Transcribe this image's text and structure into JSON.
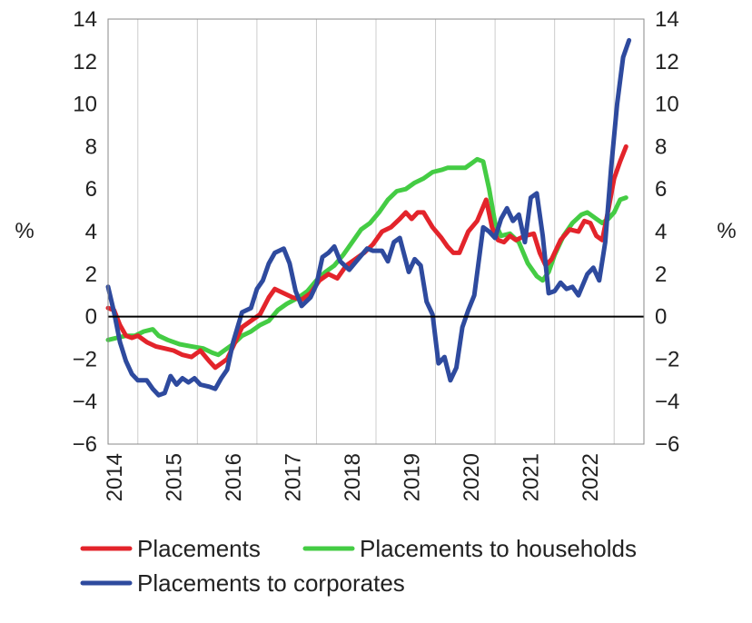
{
  "chart_data": {
    "type": "line",
    "yunit_left": "%",
    "yunit_right": "%",
    "ylim": [
      -6,
      14
    ],
    "yticks": [
      -6,
      -4,
      -2,
      0,
      2,
      4,
      6,
      8,
      10,
      12,
      14
    ],
    "xlim": [
      2013.5,
      2022.5
    ],
    "year_ticks": [
      2014,
      2015,
      2016,
      2017,
      2018,
      2019,
      2020,
      2021,
      2022
    ],
    "gridlines": [
      2014,
      2015,
      2016,
      2017,
      2018,
      2019,
      2020,
      2021,
      2022
    ],
    "grid": true,
    "legend_position": "bottom",
    "series": [
      {
        "name": "Placements",
        "color": "#e3242b",
        "points": [
          [
            2013.5,
            0.4
          ],
          [
            2013.6,
            0.3
          ],
          [
            2013.7,
            -0.4
          ],
          [
            2013.8,
            -0.9
          ],
          [
            2013.9,
            -1.0
          ],
          [
            2014.0,
            -0.9
          ],
          [
            2014.15,
            -1.2
          ],
          [
            2014.3,
            -1.4
          ],
          [
            2014.45,
            -1.5
          ],
          [
            2014.6,
            -1.6
          ],
          [
            2014.75,
            -1.8
          ],
          [
            2014.9,
            -1.9
          ],
          [
            2015.05,
            -1.6
          ],
          [
            2015.2,
            -2.1
          ],
          [
            2015.3,
            -2.4
          ],
          [
            2015.4,
            -2.2
          ],
          [
            2015.5,
            -2.0
          ],
          [
            2015.6,
            -1.4
          ],
          [
            2015.75,
            -0.5
          ],
          [
            2015.9,
            -0.2
          ],
          [
            2016.05,
            0.1
          ],
          [
            2016.2,
            0.9
          ],
          [
            2016.3,
            1.3
          ],
          [
            2016.45,
            1.1
          ],
          [
            2016.6,
            0.9
          ],
          [
            2016.75,
            0.8
          ],
          [
            2016.9,
            1.1
          ],
          [
            2017.05,
            1.7
          ],
          [
            2017.2,
            2.0
          ],
          [
            2017.35,
            1.8
          ],
          [
            2017.5,
            2.4
          ],
          [
            2017.65,
            2.7
          ],
          [
            2017.8,
            3.0
          ],
          [
            2017.95,
            3.4
          ],
          [
            2018.1,
            4.0
          ],
          [
            2018.25,
            4.2
          ],
          [
            2018.4,
            4.6
          ],
          [
            2018.5,
            4.9
          ],
          [
            2018.6,
            4.6
          ],
          [
            2018.7,
            4.9
          ],
          [
            2018.8,
            4.9
          ],
          [
            2018.95,
            4.2
          ],
          [
            2019.1,
            3.7
          ],
          [
            2019.2,
            3.3
          ],
          [
            2019.3,
            3.0
          ],
          [
            2019.4,
            3.0
          ],
          [
            2019.55,
            4.0
          ],
          [
            2019.7,
            4.5
          ],
          [
            2019.85,
            5.5
          ],
          [
            2019.95,
            4.2
          ],
          [
            2020.05,
            3.6
          ],
          [
            2020.15,
            3.5
          ],
          [
            2020.25,
            3.8
          ],
          [
            2020.35,
            3.6
          ],
          [
            2020.5,
            3.8
          ],
          [
            2020.65,
            3.9
          ],
          [
            2020.75,
            3.0
          ],
          [
            2020.85,
            2.4
          ],
          [
            2020.95,
            2.7
          ],
          [
            2021.1,
            3.6
          ],
          [
            2021.25,
            4.1
          ],
          [
            2021.4,
            4.0
          ],
          [
            2021.5,
            4.5
          ],
          [
            2021.6,
            4.4
          ],
          [
            2021.7,
            3.8
          ],
          [
            2021.8,
            3.6
          ],
          [
            2021.9,
            5.0
          ],
          [
            2022.0,
            6.5
          ],
          [
            2022.1,
            7.3
          ],
          [
            2022.2,
            8.0
          ]
        ]
      },
      {
        "name": "Placements to households",
        "color": "#44cc44",
        "points": [
          [
            2013.5,
            -1.1
          ],
          [
            2013.65,
            -1.0
          ],
          [
            2013.8,
            -0.9
          ],
          [
            2013.95,
            -0.9
          ],
          [
            2014.1,
            -0.7
          ],
          [
            2014.25,
            -0.6
          ],
          [
            2014.35,
            -0.9
          ],
          [
            2014.5,
            -1.1
          ],
          [
            2014.7,
            -1.3
          ],
          [
            2014.9,
            -1.4
          ],
          [
            2015.1,
            -1.5
          ],
          [
            2015.25,
            -1.7
          ],
          [
            2015.35,
            -1.8
          ],
          [
            2015.45,
            -1.6
          ],
          [
            2015.6,
            -1.3
          ],
          [
            2015.75,
            -0.9
          ],
          [
            2015.9,
            -0.7
          ],
          [
            2016.05,
            -0.4
          ],
          [
            2016.2,
            -0.2
          ],
          [
            2016.35,
            0.3
          ],
          [
            2016.5,
            0.6
          ],
          [
            2016.7,
            0.9
          ],
          [
            2016.85,
            1.2
          ],
          [
            2017.0,
            1.7
          ],
          [
            2017.15,
            2.1
          ],
          [
            2017.3,
            2.4
          ],
          [
            2017.45,
            2.9
          ],
          [
            2017.6,
            3.5
          ],
          [
            2017.75,
            4.1
          ],
          [
            2017.9,
            4.4
          ],
          [
            2018.05,
            4.9
          ],
          [
            2018.2,
            5.5
          ],
          [
            2018.35,
            5.9
          ],
          [
            2018.5,
            6.0
          ],
          [
            2018.65,
            6.3
          ],
          [
            2018.8,
            6.5
          ],
          [
            2018.95,
            6.8
          ],
          [
            2019.1,
            6.9
          ],
          [
            2019.2,
            7.0
          ],
          [
            2019.35,
            7.0
          ],
          [
            2019.5,
            7.0
          ],
          [
            2019.6,
            7.2
          ],
          [
            2019.7,
            7.4
          ],
          [
            2019.8,
            7.3
          ],
          [
            2019.9,
            6.0
          ],
          [
            2020.0,
            4.4
          ],
          [
            2020.1,
            3.8
          ],
          [
            2020.25,
            3.9
          ],
          [
            2020.4,
            3.5
          ],
          [
            2020.55,
            2.5
          ],
          [
            2020.7,
            1.9
          ],
          [
            2020.8,
            1.7
          ],
          [
            2020.9,
            2.1
          ],
          [
            2021.0,
            2.9
          ],
          [
            2021.15,
            3.8
          ],
          [
            2021.3,
            4.4
          ],
          [
            2021.45,
            4.8
          ],
          [
            2021.55,
            4.9
          ],
          [
            2021.7,
            4.6
          ],
          [
            2021.8,
            4.4
          ],
          [
            2021.9,
            4.6
          ],
          [
            2022.0,
            4.9
          ],
          [
            2022.1,
            5.5
          ],
          [
            2022.2,
            5.6
          ]
        ]
      },
      {
        "name": "Placements to corporates",
        "color": "#2e4a9e",
        "points": [
          [
            2013.5,
            1.4
          ],
          [
            2013.6,
            0.2
          ],
          [
            2013.7,
            -1.2
          ],
          [
            2013.8,
            -2.1
          ],
          [
            2013.9,
            -2.7
          ],
          [
            2014.0,
            -3.0
          ],
          [
            2014.15,
            -3.0
          ],
          [
            2014.25,
            -3.4
          ],
          [
            2014.35,
            -3.7
          ],
          [
            2014.45,
            -3.6
          ],
          [
            2014.55,
            -2.8
          ],
          [
            2014.65,
            -3.2
          ],
          [
            2014.75,
            -2.9
          ],
          [
            2014.85,
            -3.1
          ],
          [
            2014.95,
            -2.9
          ],
          [
            2015.05,
            -3.2
          ],
          [
            2015.2,
            -3.3
          ],
          [
            2015.3,
            -3.4
          ],
          [
            2015.4,
            -2.9
          ],
          [
            2015.5,
            -2.5
          ],
          [
            2015.6,
            -1.2
          ],
          [
            2015.75,
            0.2
          ],
          [
            2015.9,
            0.4
          ],
          [
            2016.0,
            1.3
          ],
          [
            2016.1,
            1.7
          ],
          [
            2016.2,
            2.5
          ],
          [
            2016.3,
            3.0
          ],
          [
            2016.45,
            3.2
          ],
          [
            2016.55,
            2.5
          ],
          [
            2016.65,
            1.2
          ],
          [
            2016.75,
            0.5
          ],
          [
            2016.9,
            0.9
          ],
          [
            2017.0,
            1.5
          ],
          [
            2017.1,
            2.8
          ],
          [
            2017.2,
            3.0
          ],
          [
            2017.3,
            3.3
          ],
          [
            2017.4,
            2.6
          ],
          [
            2017.55,
            2.2
          ],
          [
            2017.7,
            2.7
          ],
          [
            2017.85,
            3.2
          ],
          [
            2017.95,
            3.1
          ],
          [
            2018.1,
            3.1
          ],
          [
            2018.2,
            2.6
          ],
          [
            2018.3,
            3.5
          ],
          [
            2018.4,
            3.7
          ],
          [
            2018.55,
            2.1
          ],
          [
            2018.65,
            2.7
          ],
          [
            2018.75,
            2.4
          ],
          [
            2018.85,
            0.7
          ],
          [
            2018.95,
            0.1
          ],
          [
            2019.05,
            -2.2
          ],
          [
            2019.15,
            -1.9
          ],
          [
            2019.25,
            -3.0
          ],
          [
            2019.35,
            -2.4
          ],
          [
            2019.45,
            -0.5
          ],
          [
            2019.55,
            0.3
          ],
          [
            2019.65,
            1.0
          ],
          [
            2019.8,
            4.2
          ],
          [
            2019.9,
            4.0
          ],
          [
            2020.0,
            3.7
          ],
          [
            2020.1,
            4.6
          ],
          [
            2020.2,
            5.1
          ],
          [
            2020.3,
            4.5
          ],
          [
            2020.4,
            4.8
          ],
          [
            2020.5,
            3.5
          ],
          [
            2020.6,
            5.6
          ],
          [
            2020.7,
            5.8
          ],
          [
            2020.8,
            3.8
          ],
          [
            2020.9,
            1.1
          ],
          [
            2021.0,
            1.2
          ],
          [
            2021.1,
            1.6
          ],
          [
            2021.2,
            1.3
          ],
          [
            2021.3,
            1.4
          ],
          [
            2021.4,
            1.0
          ],
          [
            2021.55,
            2.0
          ],
          [
            2021.65,
            2.3
          ],
          [
            2021.75,
            1.7
          ],
          [
            2021.85,
            3.5
          ],
          [
            2021.95,
            7.0
          ],
          [
            2022.05,
            10.0
          ],
          [
            2022.15,
            12.2
          ],
          [
            2022.25,
            13.0
          ]
        ]
      }
    ]
  }
}
